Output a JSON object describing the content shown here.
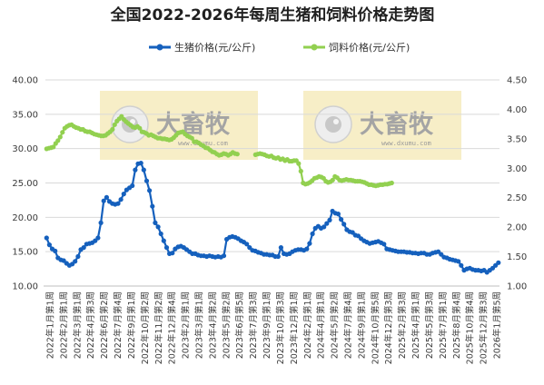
{
  "colors": {
    "pig": "#1560bd",
    "feed": "#92d050",
    "watermark_bg": "#f7eec7",
    "grid": "#d9d9d9",
    "axis_text": "#3a3a3a"
  },
  "watermark": {
    "text": "大畜牧",
    "sub": "www.dxumu.com",
    "icon": "eye-logo-icon"
  },
  "chart_data": {
    "type": "line",
    "title": "全国2022-2026年每周生猪和饲料价格走势图",
    "grid": true,
    "legend_position": "top",
    "y_left": {
      "min": 10,
      "max": 40,
      "ticks": [
        "10.00",
        "15.00",
        "20.00",
        "25.00",
        "30.00",
        "35.00",
        "40.00"
      ]
    },
    "y_right": {
      "min": 1.0,
      "max": 4.5,
      "ticks": [
        "1.00",
        "1.50",
        "2.00",
        "2.50",
        "3.00",
        "3.50",
        "4.00",
        "4.50"
      ]
    },
    "x_count": 200,
    "x_tick_labels": [
      "2022年1月第1周",
      "2022年2月第1周",
      "2022年3月第1周",
      "2022年4月第3周",
      "2022年6月第2周",
      "2022年7月第4周",
      "2022年9月第1周",
      "2022年10月第2周",
      "2022年11月第2周",
      "2022年12月第4周",
      "2023年2月第1周",
      "2023年3月第1周",
      "2023年4月第2周",
      "2023年5月第2周",
      "2023年6月第5周",
      "2023年7月第3周",
      "2023年9月第1周",
      "2023年10月第3周",
      "2023年12月第1周",
      "2024年2月第1周",
      "2024年4月第1周",
      "2024年5月第2周",
      "2024年7月第4周",
      "2024年9月第1周",
      "2024年10月第5周",
      "2024年12月第3周",
      "2025年2月第3周",
      "2025年4月第1周",
      "2025年5月第3周",
      "2025年7月第1周",
      "2025年8月第4周",
      "2025年10月第4周",
      "2025年12月第3周",
      "2026年1月第5周"
    ],
    "series": [
      {
        "name": "生猪价格(元/公斤)",
        "axis": "left",
        "values": [
          17.0,
          16.0,
          15.4,
          15.1,
          14.1,
          13.8,
          13.7,
          13.3,
          13.0,
          13.2,
          13.6,
          14.3,
          15.3,
          15.6,
          16.1,
          16.2,
          16.3,
          16.6,
          17.0,
          19.2,
          22.4,
          22.9,
          22.3,
          22.0,
          21.9,
          22.0,
          22.6,
          23.4,
          24.0,
          24.3,
          24.6,
          26.9,
          27.8,
          27.9,
          26.9,
          25.3,
          23.9,
          21.6,
          19.2,
          18.6,
          17.6,
          16.6,
          15.6,
          14.7,
          14.8,
          15.4,
          15.7,
          15.8,
          15.6,
          15.3,
          15.0,
          14.7,
          14.7,
          14.5,
          14.4,
          14.4,
          14.3,
          14.4,
          14.3,
          14.2,
          14.3,
          14.2,
          14.4,
          16.8,
          17.1,
          17.2,
          17.1,
          16.9,
          16.6,
          16.4,
          16.1,
          15.6,
          15.2,
          15.1,
          14.9,
          14.8,
          14.6,
          14.6,
          14.5,
          14.5,
          14.3,
          14.3,
          15.6,
          14.7,
          14.6,
          14.7,
          15.0,
          15.2,
          15.3,
          15.3,
          15.2,
          15.4,
          16.2,
          17.6,
          18.4,
          18.7,
          18.4,
          18.6,
          19.1,
          19.6,
          20.9,
          20.6,
          20.5,
          19.7,
          19.0,
          18.2,
          17.9,
          17.8,
          17.4,
          17.3,
          16.9,
          16.6,
          16.4,
          16.2,
          16.3,
          16.4,
          16.5,
          16.3,
          16.1,
          15.4,
          15.3,
          15.2,
          15.1,
          15.0,
          15.0,
          15.0,
          14.9,
          14.9,
          14.8,
          14.8,
          14.7,
          14.8,
          14.8,
          14.6,
          14.6,
          14.8,
          14.9,
          15.0,
          14.6,
          14.2,
          14.1,
          13.9,
          13.8,
          13.7,
          13.6,
          13.0,
          12.3,
          12.5,
          12.6,
          12.4,
          12.3,
          12.3,
          12.2,
          12.3,
          12.0,
          12.3,
          12.6,
          13.0,
          13.4
        ],
        "x_start": 0,
        "x_end": 199
      },
      {
        "name": "饲料价格(元/公斤)",
        "axis": "right",
        "segments": [
          {
            "x_start": 0,
            "values": [
              3.33,
              3.34,
              3.35,
              3.36,
              3.42,
              3.47,
              3.53,
              3.61,
              3.68,
              3.71,
              3.73,
              3.74,
              3.71,
              3.69,
              3.68,
              3.66,
              3.66,
              3.63,
              3.62,
              3.62,
              3.6,
              3.58,
              3.57,
              3.56,
              3.55,
              3.55,
              3.56,
              3.59,
              3.62,
              3.66,
              3.74,
              3.8,
              3.84,
              3.88,
              3.83,
              3.79,
              3.76,
              3.73,
              3.7,
              3.69,
              3.71,
              3.68,
              3.62,
              3.61,
              3.59,
              3.56,
              3.57,
              3.55,
              3.53,
              3.51,
              3.51,
              3.5,
              3.5,
              3.49,
              3.48,
              3.49,
              3.52,
              3.56,
              3.6,
              3.61,
              3.62,
              3.58,
              3.55,
              3.53,
              3.51,
              3.45,
              3.45,
              3.43,
              3.4,
              3.38,
              3.35,
              3.34,
              3.31,
              3.28,
              3.27,
              3.24,
              3.22,
              3.23,
              3.25,
              3.24,
              3.22,
              3.24,
              3.27,
              3.25,
              3.24
            ]
          },
          {
            "x_start": 92,
            "values": [
              3.23,
              3.24,
              3.25,
              3.24,
              3.23,
              3.21,
              3.2,
              3.21,
              3.18,
              3.17,
              3.18,
              3.15,
              3.16,
              3.13,
              3.15,
              3.12,
              3.12,
              3.13,
              3.13,
              3.08,
              2.95,
              2.75,
              2.73,
              2.74,
              2.76,
              2.79,
              2.83,
              2.84,
              2.86,
              2.85,
              2.83,
              2.78,
              2.76,
              2.77,
              2.8,
              2.86,
              2.84,
              2.8,
              2.79,
              2.8,
              2.81,
              2.8,
              2.8,
              2.79,
              2.78,
              2.78,
              2.78,
              2.77,
              2.76,
              2.74,
              2.72,
              2.72,
              2.71,
              2.7,
              2.71,
              2.72,
              2.72,
              2.73,
              2.73,
              2.74,
              2.75
            ]
          }
        ]
      }
    ]
  }
}
